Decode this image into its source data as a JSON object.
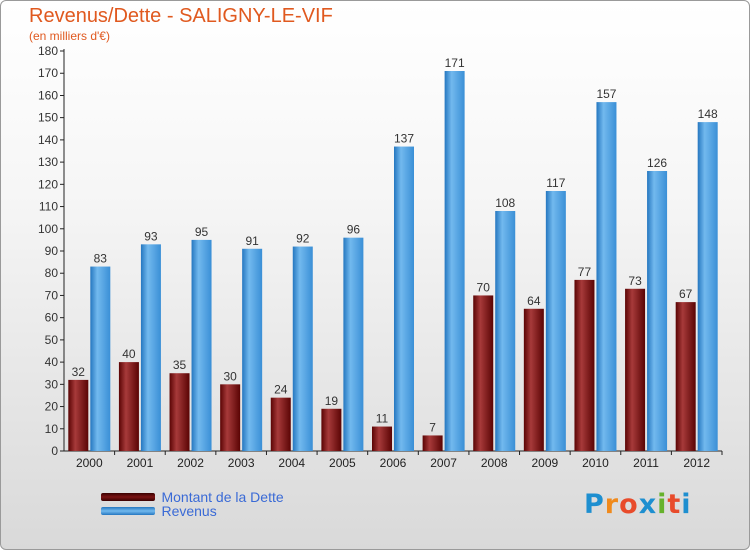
{
  "header": {
    "title": "Revenus/Dette - SALIGNY-LE-VIF",
    "subtitle": "(en milliers d'€)"
  },
  "chart_data": {
    "type": "bar",
    "categories": [
      "2000",
      "2001",
      "2002",
      "2003",
      "2004",
      "2005",
      "2006",
      "2007",
      "2008",
      "2009",
      "2010",
      "2011",
      "2012"
    ],
    "series": [
      {
        "name": "Montant de la Dette",
        "color": "#7a1212",
        "values": [
          32,
          40,
          35,
          30,
          24,
          19,
          11,
          7,
          70,
          64,
          77,
          73,
          67
        ]
      },
      {
        "name": "Revenus",
        "color": "#3f97dc",
        "values": [
          83,
          93,
          95,
          91,
          92,
          96,
          137,
          171,
          108,
          117,
          157,
          126,
          148
        ]
      }
    ],
    "ylim": [
      0,
      180
    ],
    "ytick_step": 10,
    "grid": false,
    "legend_position": "bottom-left",
    "data_labels": true
  },
  "logo": {
    "text": "Proxiti",
    "letters": [
      "P",
      "r",
      "o",
      "x",
      "i",
      "t",
      "i"
    ],
    "colors": [
      "#1e8fd0",
      "#f08a1c",
      "#e84b2b",
      "#1e8fd0",
      "#66b22c",
      "#e84b2b",
      "#1e8fd0"
    ]
  }
}
